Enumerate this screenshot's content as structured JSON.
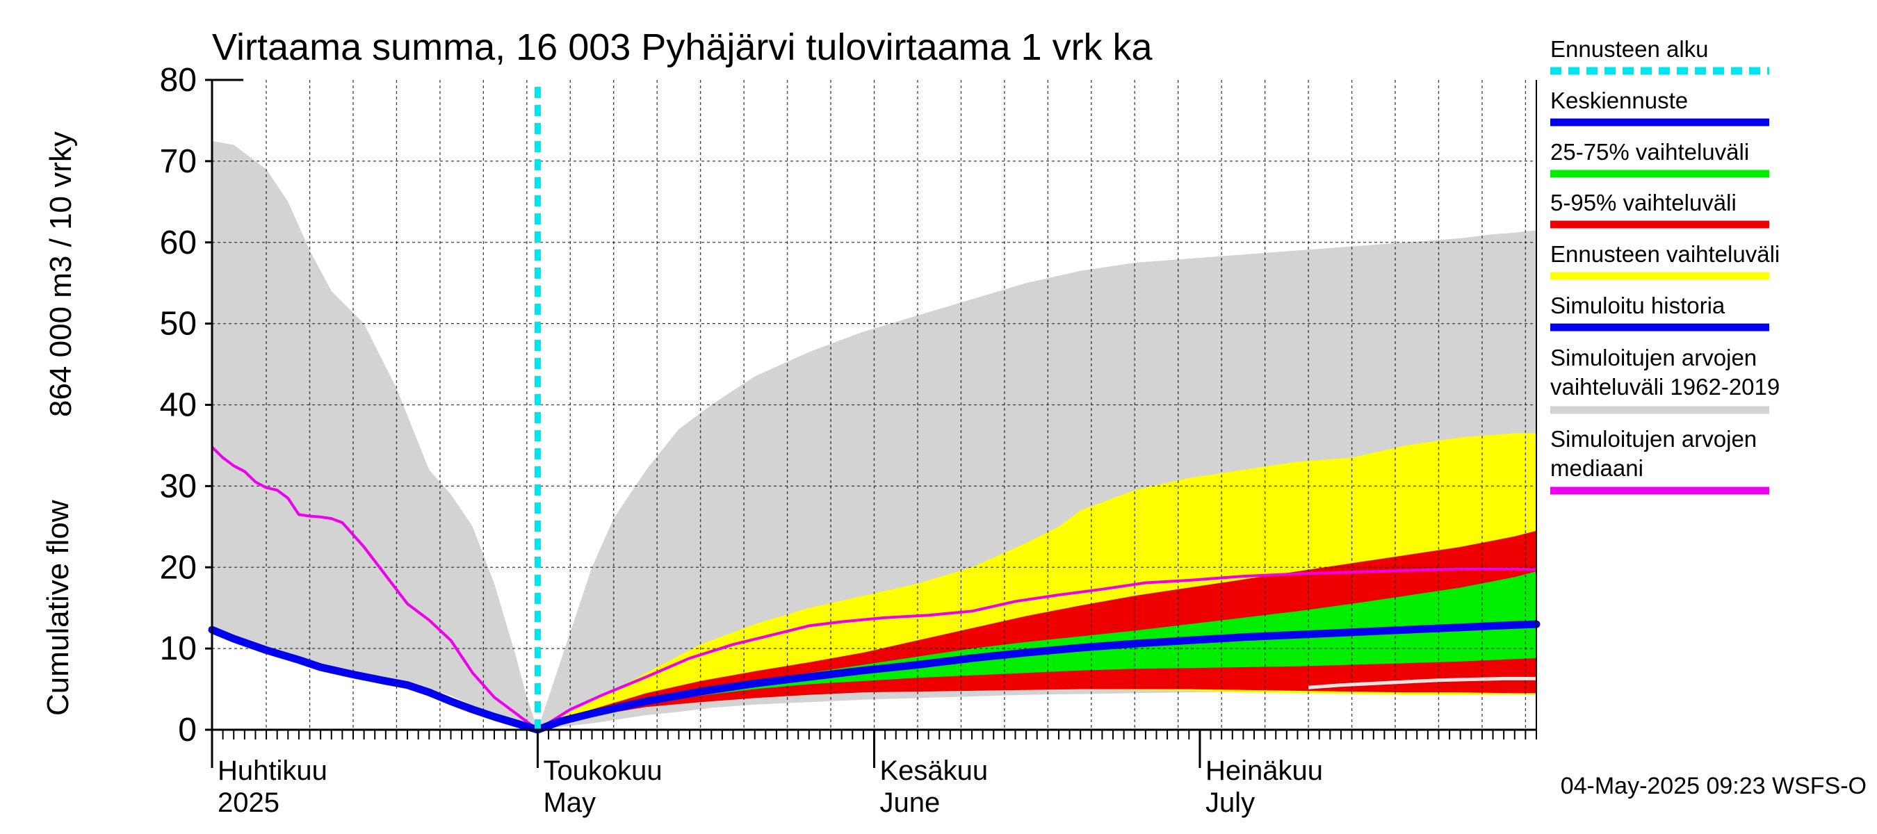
{
  "chart_data": {
    "type": "area",
    "title": "Virtaama summa, 16 003 Pyhäjärvi tulovirtaama 1 vrk ka",
    "ylabel_line1": "864 000 m3 / 10 vrky",
    "ylabel_line2": "Cumulative flow",
    "ylim": [
      0,
      80
    ],
    "yticks": [
      0,
      10,
      20,
      30,
      40,
      50,
      60,
      70,
      80
    ],
    "xlim_days": [
      0,
      122
    ],
    "x_start_date": "2025-03-26",
    "month_labels": [
      {
        "line1": "Huhtikuu",
        "line2": "2025",
        "day": 0
      },
      {
        "line1": "Toukokuu",
        "line2": "May",
        "day": 30
      },
      {
        "line1": "Kesäkuu",
        "line2": "June",
        "day": 61
      },
      {
        "line1": "Heinäkuu",
        "line2": "July",
        "day": 91
      }
    ],
    "forecast_start_day": 30,
    "grid": true,
    "timestamp": "04-May-2025 09:23 WSFS-O",
    "legend": [
      {
        "label": "Ennusteen alku",
        "color": "#00e5ee",
        "style": "dashed"
      },
      {
        "label": "Keskiennuste",
        "color": "#0000ee",
        "style": "solid"
      },
      {
        "label": "25-75% vaihteluväli",
        "color": "#00ee00",
        "style": "solid"
      },
      {
        "label": "5-95% vaihteluväli",
        "color": "#ee0000",
        "style": "solid"
      },
      {
        "label": "Ennusteen vaihteluväli",
        "color": "#ffff00",
        "style": "solid"
      },
      {
        "label": "Simuloitu historia",
        "color": "#0000ee",
        "style": "solid"
      },
      {
        "label": "Simuloitujen arvojen vaihteluväli 1962-2019",
        "line1": "Simuloitujen arvojen",
        "line2": "vaihteluväli 1962-2019",
        "color": "#d3d3d3",
        "style": "solid"
      },
      {
        "label": "Simuloitujen arvojen mediaani",
        "line1": "Simuloitujen arvojen",
        "line2": "mediaani",
        "color": "#ee00ee",
        "style": "solid"
      }
    ],
    "hist_band": {
      "x": [
        0,
        2,
        5,
        7,
        9,
        11,
        14,
        17,
        20,
        22,
        24,
        26,
        28,
        29,
        30,
        31,
        33,
        35,
        37,
        40,
        43,
        46,
        50,
        55,
        60,
        65,
        70,
        75,
        80,
        85,
        90,
        95,
        100,
        105,
        110,
        115,
        118,
        120,
        122
      ],
      "upper": [
        72.5,
        72,
        69,
        65,
        59,
        54,
        50,
        42,
        32,
        29,
        25,
        18,
        9,
        4,
        0,
        4,
        12,
        20,
        26,
        32,
        37,
        40,
        43.5,
        46.5,
        49,
        51,
        53,
        55,
        56.5,
        57.5,
        58,
        58.5,
        59,
        59.5,
        60,
        60.5,
        61,
        61.2,
        61.5
      ],
      "lower": [
        12,
        11,
        10,
        9,
        8.3,
        7.5,
        6.8,
        6,
        5,
        4.2,
        3,
        2,
        1,
        0.4,
        0,
        0.2,
        0.5,
        0.8,
        1.2,
        1.8,
        2.2,
        2.7,
        3.1,
        3.4,
        3.7,
        3.9,
        4.1,
        4.3,
        4.4,
        4.5,
        4.6,
        4.7,
        4.8,
        4.9,
        5,
        5.1,
        5.2,
        5.2,
        5.3
      ]
    },
    "forecast_band_outer": {
      "x": [
        30,
        32,
        35,
        40,
        45,
        50,
        55,
        60,
        65,
        70,
        75,
        78,
        80,
        85,
        90,
        95,
        100,
        105,
        110,
        115,
        120,
        122
      ],
      "upper": [
        0,
        1.5,
        3.5,
        7,
        10.5,
        13,
        15,
        16.5,
        18,
        20,
        23,
        25,
        27,
        29.5,
        31,
        32,
        33,
        33.5,
        35,
        36,
        36.5,
        36.5
      ],
      "lower": [
        0,
        0.9,
        1.8,
        3,
        3.6,
        4.2,
        4.5,
        4.7,
        4.8,
        4.9,
        5,
        5,
        5,
        4.9,
        4.8,
        4.6,
        4.5,
        4.4,
        4.3,
        4.3,
        4.3,
        4.3
      ]
    },
    "forecast_band_5_95": {
      "x": [
        30,
        32,
        35,
        40,
        45,
        50,
        55,
        60,
        65,
        70,
        75,
        80,
        85,
        90,
        95,
        100,
        105,
        110,
        115,
        120,
        122
      ],
      "upper": [
        0,
        1.2,
        2.5,
        4.5,
        6,
        7.2,
        8.3,
        9.5,
        11,
        12.5,
        14,
        15.3,
        16.5,
        17.5,
        18.5,
        19.5,
        20.5,
        21.5,
        22.5,
        23.8,
        24.5
      ],
      "lower": [
        0,
        0.8,
        1.7,
        2.8,
        3.4,
        3.9,
        4.3,
        4.6,
        4.7,
        4.8,
        4.9,
        5,
        5,
        5,
        4.9,
        4.8,
        4.7,
        4.6,
        4.6,
        4.5,
        4.5
      ]
    },
    "forecast_band_25_75": {
      "x": [
        30,
        32,
        35,
        40,
        45,
        50,
        55,
        60,
        65,
        70,
        75,
        80,
        85,
        90,
        95,
        100,
        105,
        110,
        115,
        120,
        122
      ],
      "upper": [
        0,
        1.0,
        2.1,
        3.7,
        4.9,
        6.0,
        7.0,
        8.0,
        9.0,
        10.0,
        10.8,
        11.5,
        12.2,
        13,
        13.8,
        14.6,
        15.5,
        16.5,
        17.5,
        18.8,
        19.5
      ],
      "lower": [
        0,
        0.9,
        1.9,
        3.3,
        4.2,
        5.0,
        5.6,
        6.0,
        6.4,
        6.7,
        7.0,
        7.3,
        7.5,
        7.6,
        7.7,
        7.8,
        8.0,
        8.2,
        8.4,
        8.7,
        8.8
      ]
    },
    "mean_forecast": {
      "x": [
        30,
        32,
        35,
        40,
        45,
        50,
        55,
        60,
        65,
        70,
        75,
        80,
        85,
        90,
        95,
        100,
        105,
        110,
        115,
        120,
        122
      ],
      "y": [
        0,
        1.0,
        2.0,
        3.5,
        4.7,
        5.7,
        6.5,
        7.3,
        8.0,
        8.8,
        9.5,
        10.1,
        10.6,
        11.0,
        11.4,
        11.7,
        12.0,
        12.3,
        12.6,
        12.9,
        13.0
      ]
    },
    "simulated_history": {
      "x": [
        0,
        2,
        5,
        8,
        10,
        13,
        16,
        18,
        20,
        22,
        24,
        26,
        28,
        30
      ],
      "y": [
        12.3,
        11.2,
        9.8,
        8.6,
        7.7,
        6.8,
        6.0,
        5.5,
        4.6,
        3.5,
        2.5,
        1.6,
        0.8,
        0
      ]
    },
    "hist_median": {
      "x": [
        0,
        1,
        2,
        3,
        4,
        5,
        6,
        7,
        8,
        9,
        10,
        11,
        12,
        14,
        16,
        18,
        20,
        22,
        24,
        26,
        28,
        30,
        33,
        36,
        40,
        44,
        48,
        52,
        55,
        58,
        62,
        66,
        70,
        74,
        78,
        82,
        86,
        90,
        95,
        100,
        105,
        110,
        115,
        120,
        122
      ],
      "y": [
        34.8,
        33.5,
        32.5,
        31.8,
        30.5,
        29.8,
        29.5,
        28.5,
        26.5,
        26.3,
        26.2,
        26.0,
        25.5,
        22.5,
        19.0,
        15.5,
        13.5,
        11.0,
        7.0,
        4.0,
        2.0,
        0,
        2.5,
        4.3,
        6.5,
        8.8,
        10.5,
        11.8,
        12.8,
        13.3,
        13.8,
        14.1,
        14.6,
        15.8,
        16.6,
        17.3,
        18.1,
        18.4,
        18.9,
        19.2,
        19.4,
        19.6,
        19.8,
        19.8,
        19.7
      ]
    },
    "low_trace": {
      "x": [
        101,
        104,
        107,
        110,
        113,
        116,
        119,
        122
      ],
      "y": [
        5.2,
        5.5,
        5.7,
        5.9,
        6.1,
        6.2,
        6.3,
        6.3
      ]
    }
  }
}
